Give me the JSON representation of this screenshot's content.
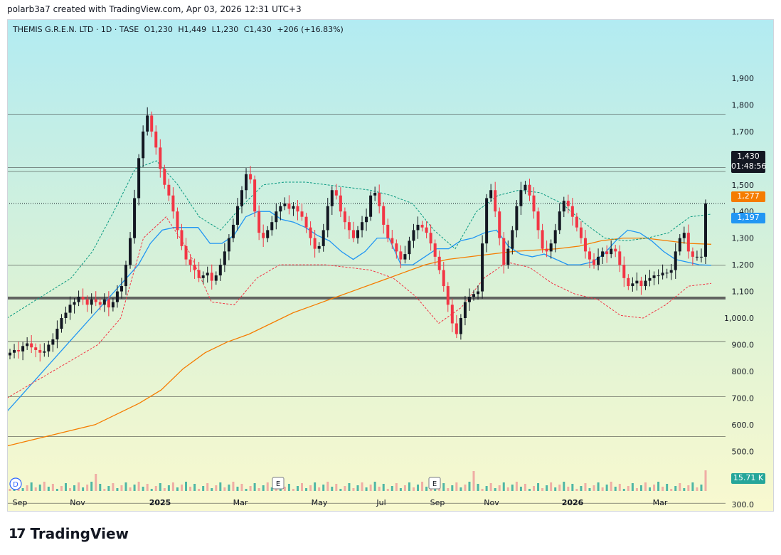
{
  "header": {
    "created_text": "polarb3a7 created with TradingView.com, Apr 03, 2026 12:31 UTC+3"
  },
  "legend": {
    "symbol": "THEMIS G.R.E.N. LTD · 1D · TASE",
    "open": "O1,230",
    "high": "H1,449",
    "low": "L1,230",
    "close": "C1,430",
    "change": "+206 (+16.83%)"
  },
  "badges": {
    "price": "1,430",
    "countdown": "01:48:56",
    "orange": "1,277",
    "blue": "1,197",
    "volume": "15.71 K"
  },
  "markers": {
    "d": "D",
    "e1": "E",
    "e2": "E"
  },
  "logo": {
    "mark": "17",
    "text": "TradingView"
  },
  "colors": {
    "up": "#089981",
    "down": "#f23645",
    "ma_orange": "#f57c00",
    "ma_blue": "#2196f3",
    "bb_upper": "#089981",
    "bb_lower": "#f23645",
    "bg_top": "#b2ebf2",
    "bg_bottom": "#f9f9cf"
  },
  "chart_data": {
    "type": "candlestick",
    "y_ticks": [
      "1,900",
      "1,800",
      "1,700",
      "1,600",
      "1,500",
      "1,400",
      "1,300",
      "1,200",
      "1,100",
      "1,000.0",
      "900.0",
      "800.0",
      "700.0",
      "600.0",
      "500.0",
      "400.0",
      "300.0"
    ],
    "x_ticks": [
      "Sep",
      "Nov",
      "2025",
      "Mar",
      "May",
      "Jul",
      "Sep",
      "Nov",
      "2026",
      "Mar"
    ],
    "horizontal_levels": [
      1765,
      1565,
      1550,
      1198,
      1075,
      912,
      705,
      555,
      305
    ],
    "last_price_line": 1430,
    "close_series": [
      870,
      880,
      875,
      895,
      905,
      890,
      880,
      870,
      875,
      900,
      920,
      960,
      1000,
      1020,
      1050,
      1060,
      1080,
      1070,
      1050,
      1070,
      1060,
      1050,
      1070,
      1040,
      1060,
      1100,
      1120,
      1200,
      1300,
      1450,
      1600,
      1700,
      1760,
      1700,
      1640,
      1560,
      1500,
      1460,
      1400,
      1330,
      1270,
      1220,
      1200,
      1180,
      1150,
      1160,
      1170,
      1140,
      1160,
      1200,
      1250,
      1300,
      1350,
      1420,
      1480,
      1540,
      1520,
      1400,
      1320,
      1300,
      1330,
      1360,
      1400,
      1420,
      1430,
      1410,
      1420,
      1400,
      1380,
      1340,
      1300,
      1260,
      1270,
      1330,
      1420,
      1480,
      1460,
      1400,
      1360,
      1330,
      1300,
      1330,
      1360,
      1380,
      1460,
      1470,
      1420,
      1350,
      1300,
      1280,
      1250,
      1220,
      1240,
      1290,
      1330,
      1350,
      1340,
      1320,
      1280,
      1230,
      1180,
      1120,
      1050,
      980,
      940,
      1000,
      1060,
      1080,
      1090,
      1100,
      1280,
      1450,
      1480,
      1400,
      1300,
      1200,
      1260,
      1330,
      1420,
      1480,
      1500,
      1460,
      1400,
      1330,
      1260,
      1250,
      1280,
      1330,
      1400,
      1440,
      1420,
      1380,
      1340,
      1300,
      1250,
      1220,
      1200,
      1230,
      1250,
      1240,
      1260,
      1250,
      1200,
      1150,
      1120,
      1130,
      1140,
      1120,
      1140,
      1150,
      1160,
      1160,
      1170,
      1170,
      1180,
      1250,
      1300,
      1320,
      1250,
      1230,
      1230,
      1230,
      1430
    ],
    "ma_blue": [
      650,
      700,
      750,
      800,
      850,
      900,
      950,
      1000,
      1050,
      1100,
      1150,
      1200,
      1280,
      1330,
      1340,
      1340,
      1340,
      1280,
      1280,
      1310,
      1380,
      1400,
      1400,
      1370,
      1360,
      1340,
      1310,
      1290,
      1250,
      1220,
      1250,
      1300,
      1300,
      1200,
      1200,
      1230,
      1260,
      1260,
      1290,
      1300,
      1320,
      1330,
      1270,
      1240,
      1230,
      1240,
      1220,
      1200,
      1200,
      1210,
      1240,
      1290,
      1330,
      1320,
      1290,
      1250,
      1220,
      1210,
      1200,
      1198
    ],
    "ma_orange": [
      520,
      540,
      560,
      580,
      600,
      640,
      680,
      730,
      810,
      870,
      910,
      940,
      980,
      1020,
      1050,
      1080,
      1110,
      1140,
      1170,
      1200,
      1220,
      1230,
      1240,
      1250,
      1255,
      1260,
      1270,
      1290,
      1300,
      1300,
      1290,
      1280,
      1277
    ],
    "bb_upper": [
      1000,
      1050,
      1100,
      1150,
      1250,
      1400,
      1560,
      1590,
      1500,
      1380,
      1330,
      1420,
      1500,
      1510,
      1510,
      1500,
      1490,
      1480,
      1460,
      1430,
      1330,
      1260,
      1400,
      1460,
      1480,
      1470,
      1430,
      1360,
      1300,
      1290,
      1300,
      1320,
      1380,
      1390
    ],
    "bb_lower": [
      700,
      750,
      800,
      850,
      900,
      1000,
      1300,
      1380,
      1250,
      1060,
      1050,
      1150,
      1200,
      1200,
      1200,
      1190,
      1180,
      1150,
      1080,
      980,
      1040,
      1150,
      1210,
      1190,
      1130,
      1090,
      1070,
      1010,
      1000,
      1050,
      1120,
      1130
    ],
    "volume_label": "15.71 K"
  }
}
